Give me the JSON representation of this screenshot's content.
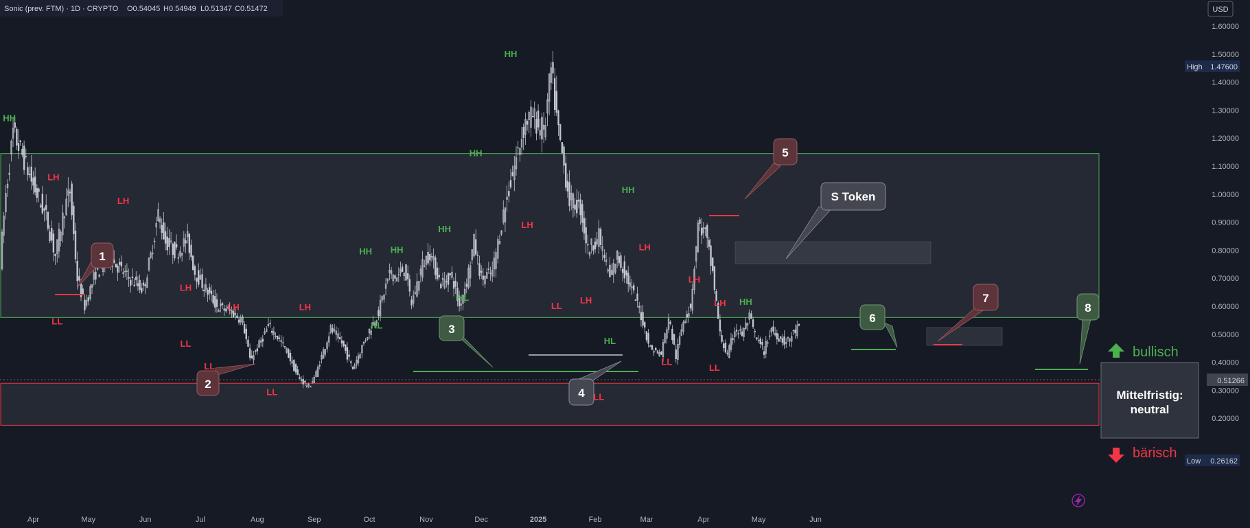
{
  "header": {
    "title": "Sonic (prev. FTM) · 1D · CRYPTO",
    "open": "O0.54045",
    "high": "H0.54949",
    "low": "L0.51347",
    "close": "C0.51472"
  },
  "currency": "USD",
  "badges": {
    "high_label": "High",
    "high_value": "1.47600",
    "low_label": "Low",
    "low_value": "0.26162",
    "last_value": "0.51266"
  },
  "chart_data": {
    "type": "candlestick",
    "ylim": [
      0.15,
      1.65
    ],
    "y_ticks": [
      "1.60000",
      "1.50000",
      "1.40000",
      "1.30000",
      "1.20000",
      "1.10000",
      "1.00000",
      "0.90000",
      "0.80000",
      "0.70000",
      "0.60000",
      "0.50000",
      "0.40000",
      "0.30000",
      "0.20000"
    ],
    "x_ticks": [
      "Apr",
      "May",
      "Jun",
      "Jul",
      "Aug",
      "Sep",
      "Oct",
      "Nov",
      "Dec",
      "2025",
      "Feb",
      "Mar",
      "Apr",
      "May",
      "Jun"
    ],
    "date_range": [
      "2024-03-15",
      "2025-04-29"
    ],
    "price_path": [
      [
        0,
        0.76
      ],
      [
        3,
        1.0
      ],
      [
        7,
        1.22
      ],
      [
        12,
        1.14
      ],
      [
        18,
        1.03
      ],
      [
        25,
        0.92
      ],
      [
        30,
        0.78
      ],
      [
        35,
        0.95
      ],
      [
        38,
        1.01
      ],
      [
        42,
        0.7
      ],
      [
        46,
        0.6
      ],
      [
        52,
        0.72
      ],
      [
        60,
        0.77
      ],
      [
        70,
        0.7
      ],
      [
        78,
        0.66
      ],
      [
        82,
        0.78
      ],
      [
        86,
        0.93
      ],
      [
        90,
        0.83
      ],
      [
        96,
        0.79
      ],
      [
        102,
        0.84
      ],
      [
        106,
        0.72
      ],
      [
        112,
        0.66
      ],
      [
        118,
        0.6
      ],
      [
        126,
        0.58
      ],
      [
        132,
        0.55
      ],
      [
        136,
        0.41
      ],
      [
        140,
        0.45
      ],
      [
        146,
        0.53
      ],
      [
        150,
        0.5
      ],
      [
        156,
        0.44
      ],
      [
        162,
        0.35
      ],
      [
        168,
        0.31
      ],
      [
        172,
        0.36
      ],
      [
        176,
        0.44
      ],
      [
        180,
        0.52
      ],
      [
        186,
        0.47
      ],
      [
        192,
        0.38
      ],
      [
        200,
        0.5
      ],
      [
        206,
        0.58
      ],
      [
        212,
        0.72
      ],
      [
        216,
        0.7
      ],
      [
        220,
        0.74
      ],
      [
        224,
        0.61
      ],
      [
        230,
        0.75
      ],
      [
        234,
        0.79
      ],
      [
        240,
        0.68
      ],
      [
        246,
        0.71
      ],
      [
        250,
        0.6
      ],
      [
        254,
        0.69
      ],
      [
        258,
        0.83
      ],
      [
        262,
        0.7
      ],
      [
        268,
        0.72
      ],
      [
        274,
        0.93
      ],
      [
        280,
        1.1
      ],
      [
        286,
        1.26
      ],
      [
        290,
        1.28
      ],
      [
        296,
        1.21
      ],
      [
        300,
        1.44
      ],
      [
        304,
        1.22
      ],
      [
        310,
        0.98
      ],
      [
        316,
        0.95
      ],
      [
        320,
        0.8
      ],
      [
        326,
        0.85
      ],
      [
        332,
        0.7
      ],
      [
        336,
        0.78
      ],
      [
        342,
        0.69
      ],
      [
        348,
        0.59
      ],
      [
        354,
        0.45
      ],
      [
        360,
        0.43
      ],
      [
        364,
        0.56
      ],
      [
        368,
        0.42
      ],
      [
        372,
        0.55
      ],
      [
        376,
        0.6
      ],
      [
        380,
        0.89
      ],
      [
        384,
        0.86
      ],
      [
        388,
        0.72
      ],
      [
        392,
        0.5
      ],
      [
        396,
        0.42
      ],
      [
        400,
        0.52
      ],
      [
        404,
        0.5
      ],
      [
        408,
        0.56
      ],
      [
        412,
        0.48
      ],
      [
        416,
        0.44
      ],
      [
        420,
        0.52
      ],
      [
        424,
        0.49
      ],
      [
        428,
        0.47
      ],
      [
        434,
        0.52
      ]
    ],
    "annotations": [
      {
        "text": "HH",
        "color": "green",
        "date": "2024-03-19",
        "price": 1.26
      },
      {
        "text": "LH",
        "color": "red",
        "date": "2024-04-12",
        "price": 1.05
      },
      {
        "text": "LL",
        "color": "red",
        "date": "2024-04-14",
        "price": 0.535
      },
      {
        "text": "LH",
        "color": "red",
        "date": "2024-05-20",
        "price": 0.965
      },
      {
        "text": "LH",
        "color": "red",
        "date": "2024-06-23",
        "price": 0.655
      },
      {
        "text": "LL",
        "color": "red",
        "date": "2024-06-23",
        "price": 0.455
      },
      {
        "text": "LH",
        "color": "red",
        "date": "2024-07-19",
        "price": 0.585
      },
      {
        "text": "LL",
        "color": "red",
        "date": "2024-07-06",
        "price": 0.375
      },
      {
        "text": "LL",
        "color": "red",
        "date": "2024-08-09",
        "price": 0.282
      },
      {
        "text": "LH",
        "color": "red",
        "date": "2024-08-27",
        "price": 0.585
      },
      {
        "text": "HH",
        "color": "green",
        "date": "2024-09-29",
        "price": 0.785
      },
      {
        "text": "HH",
        "color": "green",
        "date": "2024-10-16",
        "price": 0.79
      },
      {
        "text": "HL",
        "color": "green",
        "date": "2024-10-05",
        "price": 0.52
      },
      {
        "text": "HH",
        "color": "green",
        "date": "2024-11-11",
        "price": 0.865
      },
      {
        "text": "HL",
        "color": "green",
        "date": "2024-11-21",
        "price": 0.62
      },
      {
        "text": "HH",
        "color": "green",
        "date": "2024-11-28",
        "price": 1.135
      },
      {
        "text": "HH",
        "color": "green",
        "date": "2024-12-17",
        "price": 1.49
      },
      {
        "text": "LH",
        "color": "red",
        "date": "2024-12-26",
        "price": 0.88
      },
      {
        "text": "LL",
        "color": "red",
        "date": "2025-01-11",
        "price": 0.59
      },
      {
        "text": "LH",
        "color": "red",
        "date": "2025-01-27",
        "price": 0.61
      },
      {
        "text": "LL",
        "color": "red",
        "date": "2025-02-03",
        "price": 0.265
      },
      {
        "text": "HL",
        "color": "green",
        "date": "2025-02-09",
        "price": 0.465
      },
      {
        "text": "HH",
        "color": "green",
        "date": "2025-02-19",
        "price": 1.005
      },
      {
        "text": "LH",
        "color": "red",
        "date": "2025-02-28",
        "price": 0.8
      },
      {
        "text": "LL",
        "color": "red",
        "date": "2025-03-12",
        "price": 0.39
      },
      {
        "text": "LH",
        "color": "red",
        "date": "2025-03-27",
        "price": 0.685
      },
      {
        "text": "LL",
        "color": "red",
        "date": "2025-04-07",
        "price": 0.37
      },
      {
        "text": "LH",
        "color": "red",
        "date": "2025-04-10",
        "price": 0.6
      },
      {
        "text": "HH",
        "color": "green",
        "date": "2025-04-24",
        "price": 0.605
      }
    ],
    "callouts": [
      {
        "text": "1",
        "theme": "red"
      },
      {
        "text": "2",
        "theme": "red"
      },
      {
        "text": "3",
        "theme": "green"
      },
      {
        "text": "4",
        "theme": "gray"
      },
      {
        "text": "5",
        "theme": "red"
      },
      {
        "text": "6",
        "theme": "green"
      },
      {
        "text": "7",
        "theme": "red"
      },
      {
        "text": "8",
        "theme": "green"
      },
      {
        "text": "S Token",
        "theme": "gray"
      }
    ],
    "zones": [
      {
        "name": "upper-range",
        "from_price": 0.56,
        "to_price": 1.145,
        "border": "#4caf50"
      },
      {
        "name": "lower-range",
        "from_price": 0.175,
        "to_price": 0.325,
        "border": "#f23645"
      }
    ],
    "side_labels": {
      "bullish": "bullisch",
      "bearish": "bärisch",
      "neutral_line1": "Mittelfristig:",
      "neutral_line2": "neutral"
    }
  },
  "colors": {
    "background": "#161a25",
    "candle": "#c4c7cf",
    "green": "#4caf50",
    "red": "#f23645",
    "text": "#d1d4dc",
    "axis_text": "#b2b5be"
  },
  "icons": {
    "lightning": "lightning-icon",
    "arrow_up": "arrow-up-icon",
    "arrow_down": "arrow-down-icon"
  }
}
